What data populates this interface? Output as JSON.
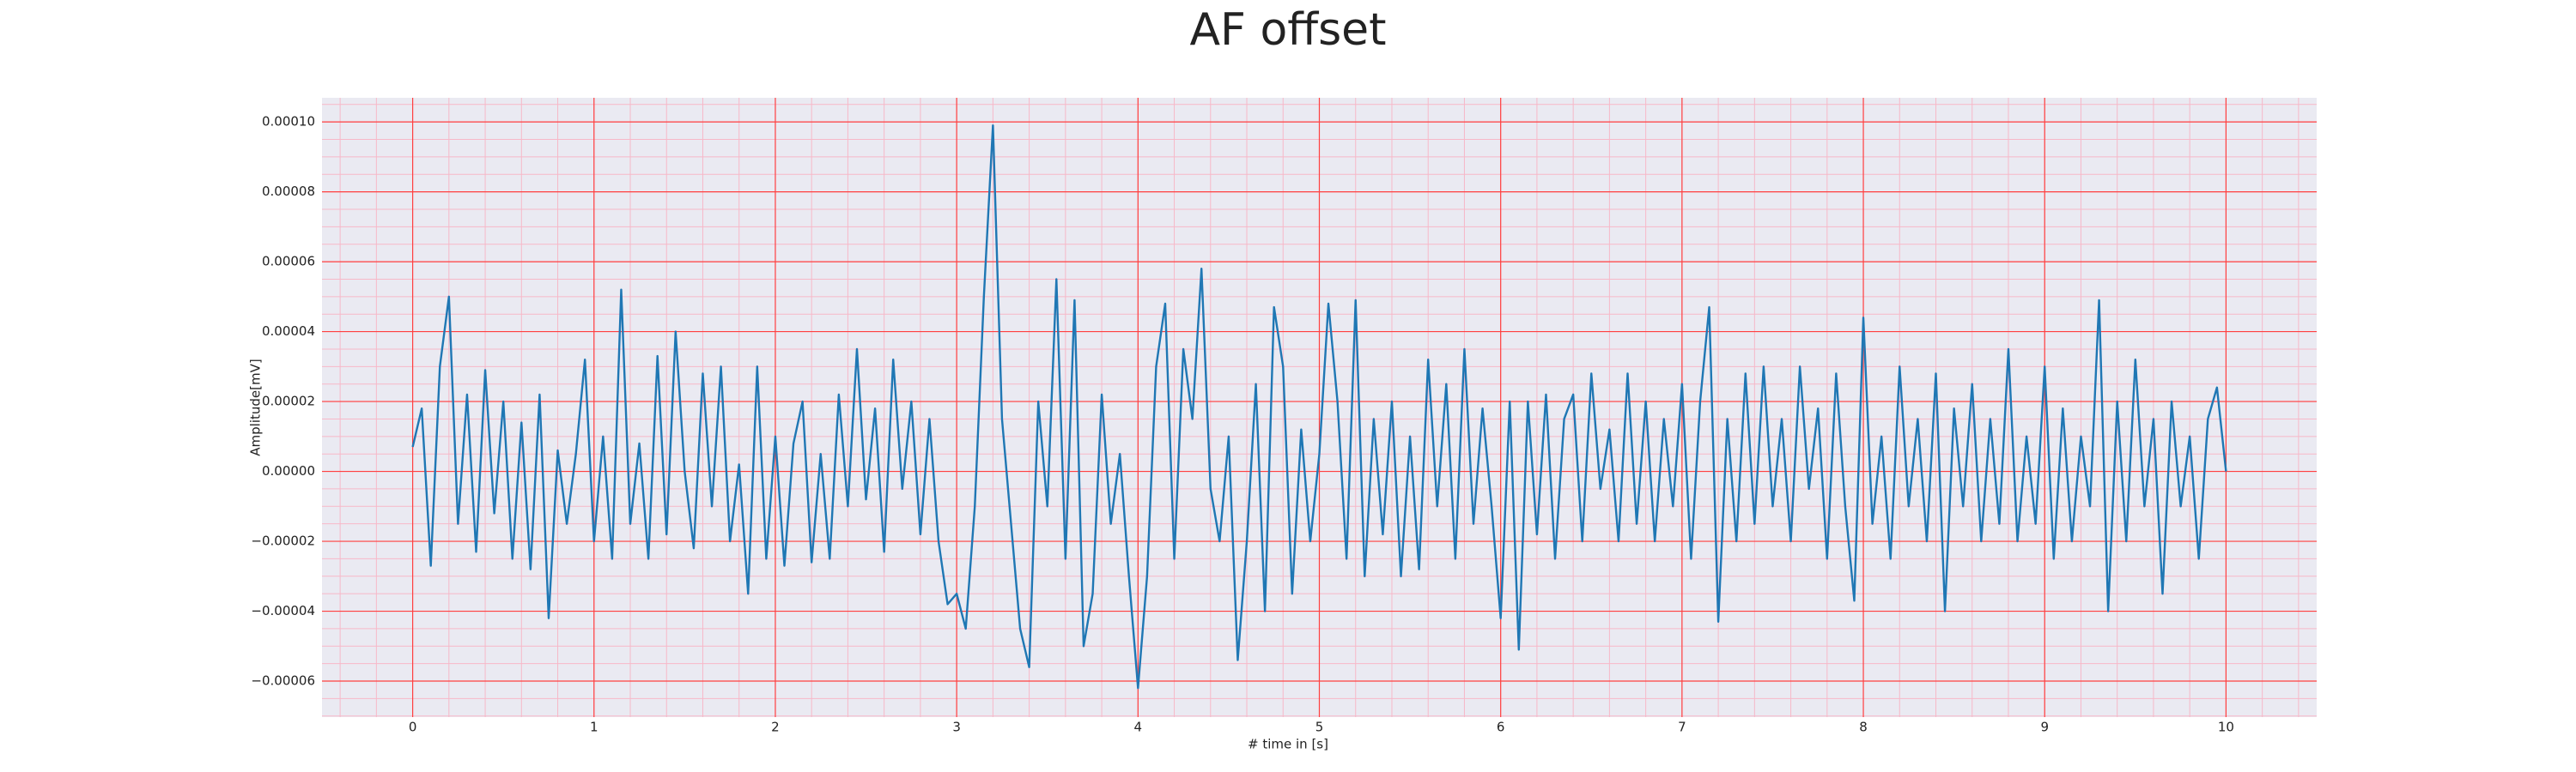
{
  "chart_data": {
    "type": "line",
    "title": "AF offset",
    "x_label": "# time in [s]",
    "y_label": "Amplitude[mV]",
    "color": "#1f77b4",
    "grid": true,
    "x": [
      0,
      0.05,
      0.1,
      0.15,
      0.2,
      0.25,
      0.3,
      0.35,
      0.4,
      0.45,
      0.5,
      0.55,
      0.6,
      0.65,
      0.7,
      0.75,
      0.8,
      0.85,
      0.9,
      0.95,
      1,
      1.05,
      1.1,
      1.15,
      1.2,
      1.25,
      1.3,
      1.35,
      1.4,
      1.45,
      1.5,
      1.55,
      1.6,
      1.65,
      1.7,
      1.75,
      1.8,
      1.85,
      1.9,
      1.95,
      2,
      2.05,
      2.1,
      2.15,
      2.2,
      2.25,
      2.3,
      2.35,
      2.4,
      2.45,
      2.5,
      2.55,
      2.6,
      2.65,
      2.7,
      2.75,
      2.8,
      2.85,
      2.9,
      2.95,
      3,
      3.05,
      3.1,
      3.15,
      3.2,
      3.25,
      3.3,
      3.35,
      3.4,
      3.45,
      3.5,
      3.55,
      3.6,
      3.65,
      3.7,
      3.75,
      3.8,
      3.85,
      3.9,
      3.95,
      4,
      4.05,
      4.1,
      4.15,
      4.2,
      4.25,
      4.3,
      4.35,
      4.4,
      4.45,
      4.5,
      4.55,
      4.6,
      4.65,
      4.7,
      4.75,
      4.8,
      4.85,
      4.9,
      4.95,
      5,
      5.05,
      5.1,
      5.15,
      5.2,
      5.25,
      5.3,
      5.35,
      5.4,
      5.45,
      5.5,
      5.55,
      5.6,
      5.65,
      5.7,
      5.75,
      5.8,
      5.85,
      5.9,
      5.95,
      6,
      6.05,
      6.1,
      6.15,
      6.2,
      6.25,
      6.3,
      6.35,
      6.4,
      6.45,
      6.5,
      6.55,
      6.6,
      6.65,
      6.7,
      6.75,
      6.8,
      6.85,
      6.9,
      6.95,
      7,
      7.05,
      7.1,
      7.15,
      7.2,
      7.25,
      7.3,
      7.35,
      7.4,
      7.45,
      7.5,
      7.55,
      7.6,
      7.65,
      7.7,
      7.75,
      7.8,
      7.85,
      7.9,
      7.95,
      8,
      8.05,
      8.1,
      8.15,
      8.2,
      8.25,
      8.3,
      8.35,
      8.4,
      8.45,
      8.5,
      8.55,
      8.6,
      8.65,
      8.7,
      8.75,
      8.8,
      8.85,
      8.9,
      8.95,
      9,
      9.05,
      9.1,
      9.15,
      9.2,
      9.25,
      9.3,
      9.35,
      9.4,
      9.45,
      9.5,
      9.55,
      9.6,
      9.65,
      9.7,
      9.75,
      9.8,
      9.85,
      9.9,
      9.95,
      10
    ],
    "values": [
      7e-06,
      1.8e-05,
      -2.7e-05,
      3e-05,
      5e-05,
      -1.5e-05,
      2.2e-05,
      -2.3e-05,
      2.9e-05,
      -1.2e-05,
      2e-05,
      -2.5e-05,
      1.4e-05,
      -2.8e-05,
      2.2e-05,
      -4.2e-05,
      6e-06,
      -1.5e-05,
      5e-06,
      3.2e-05,
      -2e-05,
      1e-05,
      -2.5e-05,
      5.2e-05,
      -1.5e-05,
      8e-06,
      -2.5e-05,
      3.3e-05,
      -1.8e-05,
      4e-05,
      0,
      -2.2e-05,
      2.8e-05,
      -1e-05,
      3e-05,
      -2e-05,
      2e-06,
      -3.5e-05,
      3e-05,
      -2.5e-05,
      1e-05,
      -2.7e-05,
      8e-06,
      2e-05,
      -2.6e-05,
      5e-06,
      -2.5e-05,
      2.2e-05,
      -1e-05,
      3.5e-05,
      -8e-06,
      1.8e-05,
      -2.3e-05,
      3.2e-05,
      -5e-06,
      2e-05,
      -1.8e-05,
      1.5e-05,
      -2e-05,
      -3.8e-05,
      -3.5e-05,
      -4.5e-05,
      -1e-05,
      5e-05,
      9.9e-05,
      1.5e-05,
      -1.5e-05,
      -4.5e-05,
      -5.6e-05,
      2e-05,
      -1e-05,
      5.5e-05,
      -2.5e-05,
      4.9e-05,
      -5e-05,
      -3.5e-05,
      2.2e-05,
      -1.5e-05,
      5e-06,
      -3e-05,
      -6.2e-05,
      -3e-05,
      3e-05,
      4.8e-05,
      -2.5e-05,
      3.5e-05,
      1.5e-05,
      5.8e-05,
      -5e-06,
      -2e-05,
      1e-05,
      -5.4e-05,
      -2e-05,
      2.5e-05,
      -4e-05,
      4.7e-05,
      3e-05,
      -3.5e-05,
      1.2e-05,
      -2e-05,
      5e-06,
      4.8e-05,
      2e-05,
      -2.5e-05,
      4.9e-05,
      -3e-05,
      1.5e-05,
      -1.8e-05,
      2e-05,
      -3e-05,
      1e-05,
      -2.8e-05,
      3.2e-05,
      -1e-05,
      2.5e-05,
      -2.5e-05,
      3.5e-05,
      -1.5e-05,
      1.8e-05,
      -1e-05,
      -4.2e-05,
      2e-05,
      -5.1e-05,
      2e-05,
      -1.8e-05,
      2.2e-05,
      -2.5e-05,
      1.5e-05,
      2.2e-05,
      -2e-05,
      2.8e-05,
      -5e-06,
      1.2e-05,
      -2e-05,
      2.8e-05,
      -1.5e-05,
      2e-05,
      -2e-05,
      1.5e-05,
      -1e-05,
      2.5e-05,
      -2.5e-05,
      2e-05,
      4.7e-05,
      -4.3e-05,
      1.5e-05,
      -2e-05,
      2.8e-05,
      -1.5e-05,
      3e-05,
      -1e-05,
      1.5e-05,
      -2e-05,
      3e-05,
      -5e-06,
      1.8e-05,
      -2.5e-05,
      2.8e-05,
      -1e-05,
      -3.7e-05,
      4.4e-05,
      -1.5e-05,
      1e-05,
      -2.5e-05,
      3e-05,
      -1e-05,
      1.5e-05,
      -2e-05,
      2.8e-05,
      -4e-05,
      1.8e-05,
      -1e-05,
      2.5e-05,
      -2e-05,
      1.5e-05,
      -1.5e-05,
      3.5e-05,
      -2e-05,
      1e-05,
      -1.5e-05,
      3e-05,
      -2.5e-05,
      1.8e-05,
      -2e-05,
      1e-05,
      -1e-05,
      4.9e-05,
      -4e-05,
      2e-05,
      -2e-05,
      3.2e-05,
      -1e-05,
      1.5e-05,
      -3.5e-05,
      2e-05,
      -1e-05,
      1e-05,
      -2.5e-05,
      1.5e-05,
      2.4e-05,
      0
    ],
    "xlim": [
      -0.5,
      10.5
    ],
    "ylim": [
      -7.03e-05,
      0.0001069
    ],
    "xticks": [
      0,
      1,
      2,
      3,
      4,
      5,
      6,
      7,
      8,
      9,
      10
    ],
    "yticks": [
      {
        "value": -6e-05,
        "label": "−0.00006"
      },
      {
        "value": -4e-05,
        "label": "−0.00004"
      },
      {
        "value": -2e-05,
        "label": "−0.00002"
      },
      {
        "value": 0,
        "label": "0.00000"
      },
      {
        "value": 2e-05,
        "label": "0.00002"
      },
      {
        "value": 4e-05,
        "label": "0.00004"
      },
      {
        "value": 6e-05,
        "label": "0.00006"
      },
      {
        "value": 8e-05,
        "label": "0.00008"
      },
      {
        "value": 0.0001,
        "label": "0.00010"
      }
    ],
    "x_minor_ticks": [
      -0.4,
      -0.2,
      0,
      0.2,
      0.4,
      0.6,
      0.8,
      1,
      1.2,
      1.4,
      1.6,
      1.8,
      2,
      2.2,
      2.4,
      2.6,
      2.8,
      3,
      3.2,
      3.4,
      3.6,
      3.8,
      4,
      4.2,
      4.4,
      4.6,
      4.8,
      5,
      5.2,
      5.4,
      5.6,
      5.8,
      6,
      6.2,
      6.4,
      6.6,
      6.8,
      7,
      7.2,
      7.4,
      7.6,
      7.8,
      8,
      8.2,
      8.4,
      8.6,
      8.8,
      9,
      9.2,
      9.4,
      9.6,
      9.8,
      10,
      10.2,
      10.4
    ],
    "y_minor_ticks": [
      -7e-05,
      -6.5e-05,
      -6e-05,
      -5.5e-05,
      -5e-05,
      -4.5e-05,
      -4e-05,
      -3.5e-05,
      -3e-05,
      -2.5e-05,
      -2e-05,
      -1.5e-05,
      -1e-05,
      -5e-06,
      0,
      5e-06,
      1e-05,
      1.5e-05,
      2e-05,
      2.5e-05,
      3e-05,
      3.5e-05,
      4e-05,
      4.5e-05,
      5e-05,
      5.5e-05,
      6e-05,
      6.5e-05,
      7e-05,
      7.5e-05,
      8e-05,
      8.5e-05,
      9e-05,
      9.5e-05,
      0.0001,
      0.000105
    ]
  }
}
